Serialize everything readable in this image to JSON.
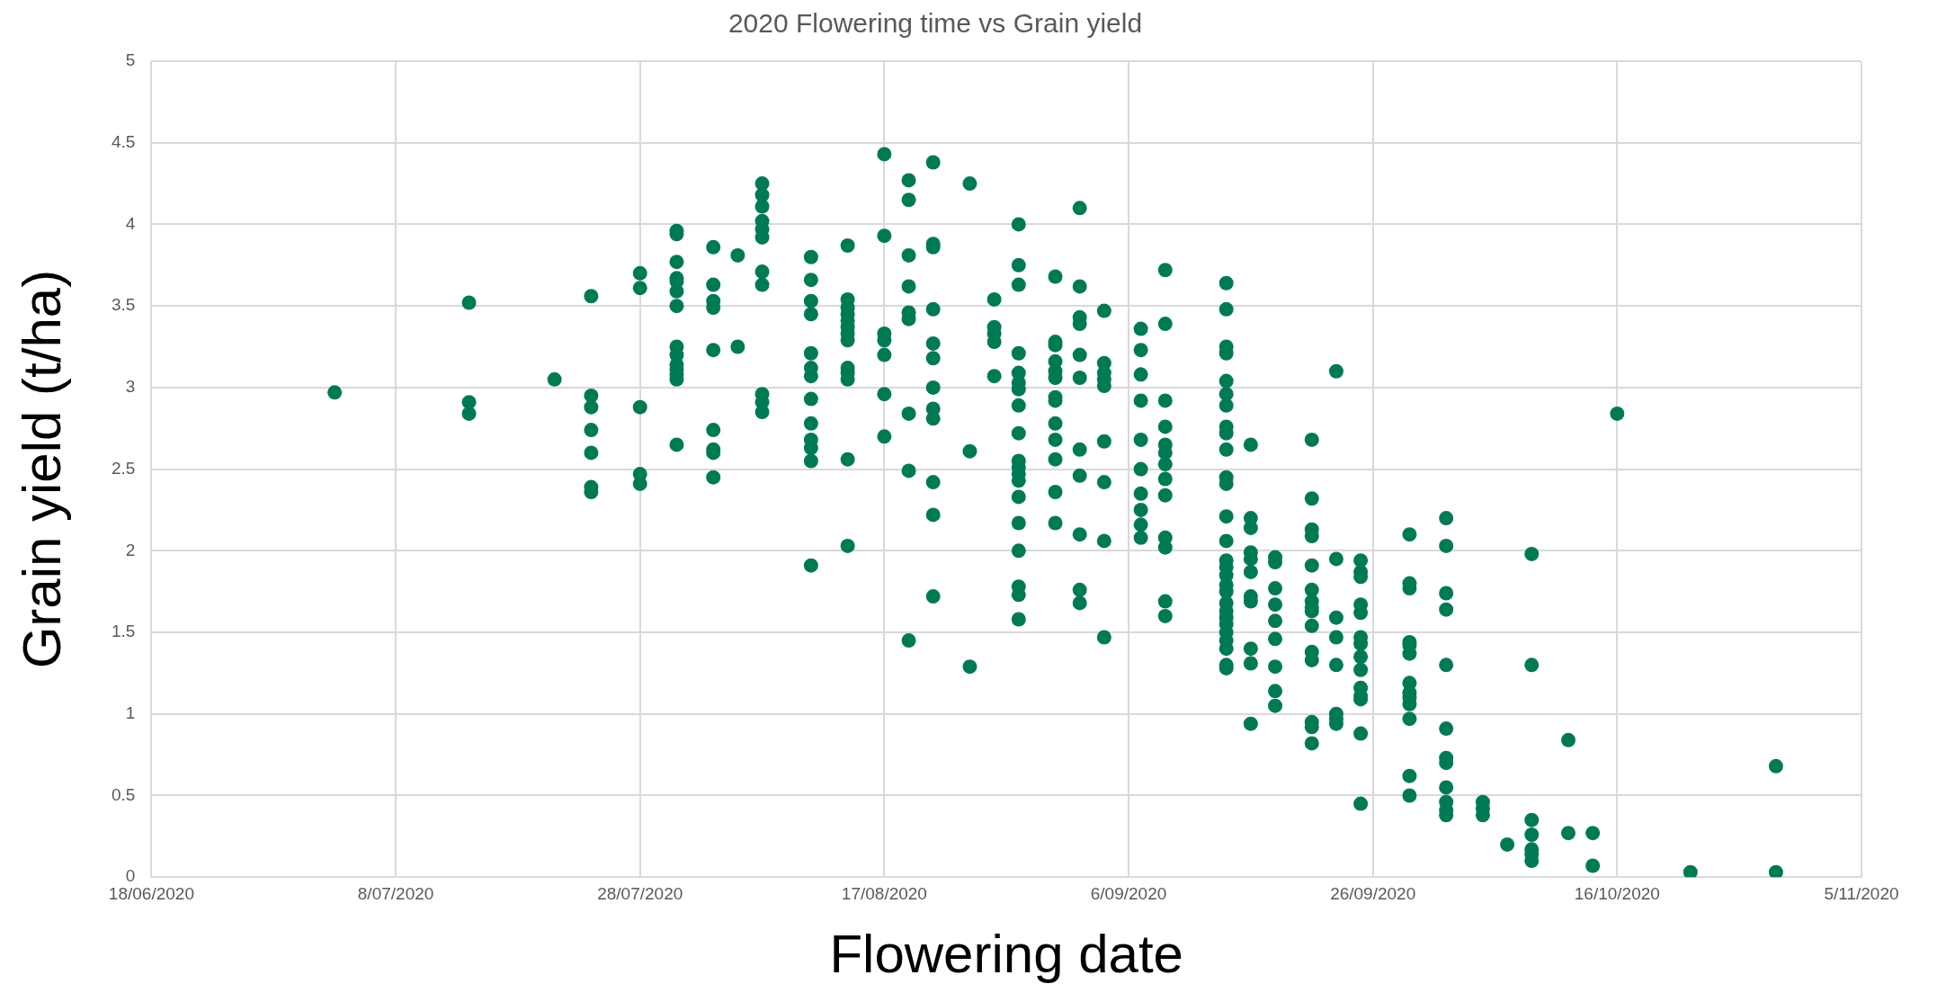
{
  "chart_data": {
    "type": "scatter",
    "title": "2020 Flowering time vs Grain yield",
    "xlabel": "Flowering date",
    "ylabel": "Grain yield (t/ha)",
    "xlim": [
      "2020-06-18",
      "2020-11-05"
    ],
    "xticks": [
      {
        "value": "2020-06-18",
        "label": "18/06/2020"
      },
      {
        "value": "2020-07-08",
        "label": "8/07/2020"
      },
      {
        "value": "2020-07-28",
        "label": "28/07/2020"
      },
      {
        "value": "2020-08-17",
        "label": "17/08/2020"
      },
      {
        "value": "2020-09-06",
        "label": "6/09/2020"
      },
      {
        "value": "2020-09-26",
        "label": "26/09/2020"
      },
      {
        "value": "2020-10-16",
        "label": "16/10/2020"
      },
      {
        "value": "2020-11-05",
        "label": "5/11/2020"
      }
    ],
    "ylim": [
      0,
      5
    ],
    "yticks": [
      0,
      0.5,
      1,
      1.5,
      2,
      2.5,
      3,
      3.5,
      4,
      4.5,
      5
    ],
    "grid": true,
    "marker": "circle",
    "legend": false,
    "series": [
      {
        "color": "#007a55",
        "x": [
          "2020-07-03",
          "2020-07-14",
          "2020-07-14",
          "2020-07-14",
          "2020-07-21",
          "2020-07-24",
          "2020-07-24",
          "2020-07-24",
          "2020-07-24",
          "2020-07-24",
          "2020-07-24",
          "2020-07-24",
          "2020-07-28",
          "2020-07-28",
          "2020-07-28",
          "2020-07-28",
          "2020-07-28",
          "2020-07-31",
          "2020-07-31",
          "2020-07-31",
          "2020-07-31",
          "2020-07-31",
          "2020-07-31",
          "2020-07-31",
          "2020-07-31",
          "2020-07-31",
          "2020-07-31",
          "2020-07-31",
          "2020-07-31",
          "2020-07-31",
          "2020-07-31",
          "2020-08-03",
          "2020-08-03",
          "2020-08-03",
          "2020-08-03",
          "2020-08-03",
          "2020-08-03",
          "2020-08-03",
          "2020-08-03",
          "2020-08-03",
          "2020-08-05",
          "2020-08-05",
          "2020-08-07",
          "2020-08-07",
          "2020-08-07",
          "2020-08-07",
          "2020-08-07",
          "2020-08-07",
          "2020-08-07",
          "2020-08-07",
          "2020-08-07",
          "2020-08-07",
          "2020-08-07",
          "2020-08-11",
          "2020-08-11",
          "2020-08-11",
          "2020-08-11",
          "2020-08-11",
          "2020-08-11",
          "2020-08-11",
          "2020-08-11",
          "2020-08-11",
          "2020-08-11",
          "2020-08-11",
          "2020-08-11",
          "2020-08-11",
          "2020-08-14",
          "2020-08-14",
          "2020-08-14",
          "2020-08-14",
          "2020-08-14",
          "2020-08-14",
          "2020-08-14",
          "2020-08-14",
          "2020-08-14",
          "2020-08-14",
          "2020-08-14",
          "2020-08-14",
          "2020-08-14",
          "2020-08-17",
          "2020-08-17",
          "2020-08-17",
          "2020-08-17",
          "2020-08-17",
          "2020-08-17",
          "2020-08-17",
          "2020-08-19",
          "2020-08-19",
          "2020-08-19",
          "2020-08-19",
          "2020-08-19",
          "2020-08-19",
          "2020-08-19",
          "2020-08-19",
          "2020-08-19",
          "2020-08-21",
          "2020-08-21",
          "2020-08-21",
          "2020-08-21",
          "2020-08-21",
          "2020-08-21",
          "2020-08-21",
          "2020-08-21",
          "2020-08-21",
          "2020-08-21",
          "2020-08-21",
          "2020-08-21",
          "2020-08-24",
          "2020-08-24",
          "2020-08-24",
          "2020-08-26",
          "2020-08-26",
          "2020-08-26",
          "2020-08-26",
          "2020-08-26",
          "2020-08-28",
          "2020-08-28",
          "2020-08-28",
          "2020-08-28",
          "2020-08-28",
          "2020-08-28",
          "2020-08-28",
          "2020-08-28",
          "2020-08-28",
          "2020-08-28",
          "2020-08-28",
          "2020-08-28",
          "2020-08-28",
          "2020-08-28",
          "2020-08-28",
          "2020-08-28",
          "2020-08-28",
          "2020-08-28",
          "2020-08-28",
          "2020-08-31",
          "2020-08-31",
          "2020-08-31",
          "2020-08-31",
          "2020-08-31",
          "2020-08-31",
          "2020-08-31",
          "2020-08-31",
          "2020-08-31",
          "2020-08-31",
          "2020-08-31",
          "2020-08-31",
          "2020-08-31",
          "2020-09-02",
          "2020-09-02",
          "2020-09-02",
          "2020-09-02",
          "2020-09-02",
          "2020-09-02",
          "2020-09-02",
          "2020-09-02",
          "2020-09-02",
          "2020-09-02",
          "2020-09-02",
          "2020-09-04",
          "2020-09-04",
          "2020-09-04",
          "2020-09-04",
          "2020-09-04",
          "2020-09-04",
          "2020-09-04",
          "2020-09-04",
          "2020-09-04",
          "2020-09-07",
          "2020-09-07",
          "2020-09-07",
          "2020-09-07",
          "2020-09-07",
          "2020-09-07",
          "2020-09-07",
          "2020-09-07",
          "2020-09-07",
          "2020-09-07",
          "2020-09-09",
          "2020-09-09",
          "2020-09-09",
          "2020-09-09",
          "2020-09-09",
          "2020-09-09",
          "2020-09-09",
          "2020-09-09",
          "2020-09-09",
          "2020-09-09",
          "2020-09-09",
          "2020-09-09",
          "2020-09-09",
          "2020-09-14",
          "2020-09-14",
          "2020-09-14",
          "2020-09-14",
          "2020-09-14",
          "2020-09-14",
          "2020-09-14",
          "2020-09-14",
          "2020-09-14",
          "2020-09-14",
          "2020-09-14",
          "2020-09-14",
          "2020-09-14",
          "2020-09-14",
          "2020-09-14",
          "2020-09-14",
          "2020-09-14",
          "2020-09-14",
          "2020-09-14",
          "2020-09-14",
          "2020-09-14",
          "2020-09-14",
          "2020-09-14",
          "2020-09-14",
          "2020-09-14",
          "2020-09-14",
          "2020-09-14",
          "2020-09-14",
          "2020-09-16",
          "2020-09-16",
          "2020-09-16",
          "2020-09-16",
          "2020-09-16",
          "2020-09-16",
          "2020-09-16",
          "2020-09-16",
          "2020-09-16",
          "2020-09-16",
          "2020-09-16",
          "2020-09-18",
          "2020-09-18",
          "2020-09-18",
          "2020-09-18",
          "2020-09-18",
          "2020-09-18",
          "2020-09-18",
          "2020-09-18",
          "2020-09-18",
          "2020-09-21",
          "2020-09-21",
          "2020-09-21",
          "2020-09-21",
          "2020-09-21",
          "2020-09-21",
          "2020-09-21",
          "2020-09-21",
          "2020-09-21",
          "2020-09-21",
          "2020-09-21",
          "2020-09-21",
          "2020-09-21",
          "2020-09-21",
          "2020-09-21",
          "2020-09-23",
          "2020-09-23",
          "2020-09-23",
          "2020-09-23",
          "2020-09-23",
          "2020-09-23",
          "2020-09-23",
          "2020-09-23",
          "2020-09-25",
          "2020-09-25",
          "2020-09-25",
          "2020-09-25",
          "2020-09-25",
          "2020-09-25",
          "2020-09-25",
          "2020-09-25",
          "2020-09-25",
          "2020-09-25",
          "2020-09-25",
          "2020-09-25",
          "2020-09-25",
          "2020-09-25",
          "2020-09-29",
          "2020-09-29",
          "2020-09-29",
          "2020-09-29",
          "2020-09-29",
          "2020-09-29",
          "2020-09-29",
          "2020-09-29",
          "2020-09-29",
          "2020-09-29",
          "2020-09-29",
          "2020-09-29",
          "2020-09-29",
          "2020-10-02",
          "2020-10-02",
          "2020-10-02",
          "2020-10-02",
          "2020-10-02",
          "2020-10-02",
          "2020-10-02",
          "2020-10-02",
          "2020-10-02",
          "2020-10-02",
          "2020-10-02",
          "2020-10-02",
          "2020-10-05",
          "2020-10-05",
          "2020-10-05",
          "2020-10-07",
          "2020-10-09",
          "2020-10-09",
          "2020-10-09",
          "2020-10-09",
          "2020-10-09",
          "2020-10-09",
          "2020-10-09",
          "2020-10-12",
          "2020-10-12",
          "2020-10-14",
          "2020-10-14",
          "2020-10-16",
          "2020-10-22",
          "2020-10-29",
          "2020-10-29"
        ],
        "values": [
          2.97,
          3.52,
          2.91,
          2.84,
          3.05,
          3.56,
          2.95,
          2.88,
          2.74,
          2.6,
          2.39,
          2.36,
          3.7,
          3.61,
          2.88,
          2.47,
          2.41,
          3.96,
          3.94,
          3.77,
          3.67,
          3.65,
          3.59,
          3.5,
          3.25,
          3.2,
          3.14,
          3.11,
          3.08,
          3.05,
          2.65,
          3.86,
          3.63,
          3.53,
          3.49,
          3.23,
          2.74,
          2.62,
          2.6,
          2.45,
          3.81,
          3.25,
          4.25,
          4.18,
          4.11,
          4.02,
          3.97,
          3.92,
          3.71,
          3.63,
          2.96,
          2.91,
          2.85,
          3.8,
          3.66,
          3.53,
          3.45,
          3.21,
          3.12,
          3.07,
          2.93,
          2.78,
          2.68,
          2.63,
          2.55,
          1.91,
          3.87,
          3.54,
          3.49,
          3.45,
          3.41,
          3.37,
          3.33,
          3.29,
          3.12,
          3.09,
          3.05,
          2.56,
          2.03,
          4.43,
          3.93,
          3.33,
          3.29,
          3.2,
          2.96,
          2.7,
          4.27,
          4.15,
          3.81,
          3.62,
          3.46,
          3.42,
          2.84,
          2.49,
          1.45,
          4.38,
          3.88,
          3.86,
          3.48,
          3.27,
          3.18,
          3,
          2.87,
          2.81,
          2.42,
          2.22,
          1.72,
          4.25,
          2.61,
          1.29,
          3.54,
          3.37,
          3.33,
          3.28,
          3.07,
          4,
          3.75,
          3.63,
          3.21,
          3.09,
          3.03,
          2.99,
          2.89,
          2.72,
          2.55,
          2.51,
          2.47,
          2.43,
          2.33,
          2.17,
          2,
          1.78,
          1.73,
          1.58,
          3.68,
          3.28,
          3.26,
          3.16,
          3.1,
          3.06,
          2.94,
          2.92,
          2.78,
          2.68,
          2.56,
          2.36,
          2.17,
          4.1,
          3.62,
          3.43,
          3.39,
          3.2,
          3.06,
          2.62,
          2.46,
          2.1,
          1.76,
          1.68,
          3.47,
          3.15,
          3.09,
          3.05,
          3.01,
          2.67,
          2.42,
          2.06,
          1.47,
          3.36,
          3.23,
          3.08,
          2.92,
          2.68,
          2.5,
          2.35,
          2.25,
          2.16,
          2.08,
          3.72,
          3.39,
          2.92,
          2.76,
          2.65,
          2.6,
          2.53,
          2.44,
          2.34,
          2.08,
          2.02,
          1.69,
          1.6,
          3.64,
          3.48,
          3.25,
          3.21,
          3.04,
          2.96,
          2.89,
          2.76,
          2.72,
          2.62,
          2.45,
          2.41,
          2.21,
          2.06,
          1.94,
          1.9,
          1.85,
          1.79,
          1.75,
          1.68,
          1.63,
          1.59,
          1.55,
          1.5,
          1.45,
          1.4,
          1.3,
          1.28,
          2.65,
          2.2,
          2.14,
          1.99,
          1.95,
          1.87,
          1.72,
          1.69,
          1.4,
          1.31,
          0.94,
          1.96,
          1.93,
          1.77,
          1.67,
          1.57,
          1.46,
          1.29,
          1.14,
          1.05,
          2.68,
          2.32,
          2.13,
          2.09,
          1.91,
          1.76,
          1.69,
          1.65,
          1.63,
          1.54,
          1.38,
          1.33,
          0.95,
          0.92,
          0.82,
          3.1,
          1.95,
          1.59,
          1.47,
          1.3,
          1,
          0.97,
          0.94,
          1.94,
          1.87,
          1.84,
          1.67,
          1.62,
          1.47,
          1.43,
          1.35,
          1.27,
          1.16,
          1.11,
          1.09,
          0.88,
          0.45,
          2.1,
          1.8,
          1.77,
          1.44,
          1.42,
          1.37,
          1.19,
          1.13,
          1.1,
          1.06,
          0.97,
          0.62,
          0.5,
          2.2,
          2.03,
          1.74,
          1.64,
          1.3,
          0.91,
          0.73,
          0.7,
          0.55,
          0.46,
          0.41,
          0.38,
          0.46,
          0.42,
          0.38,
          0.2,
          1.98,
          1.3,
          0.35,
          0.26,
          0.17,
          0.14,
          0.1,
          0.84,
          0.27,
          0.27,
          0.07,
          2.84,
          0.03,
          0.68,
          0.03
        ]
      }
    ]
  }
}
